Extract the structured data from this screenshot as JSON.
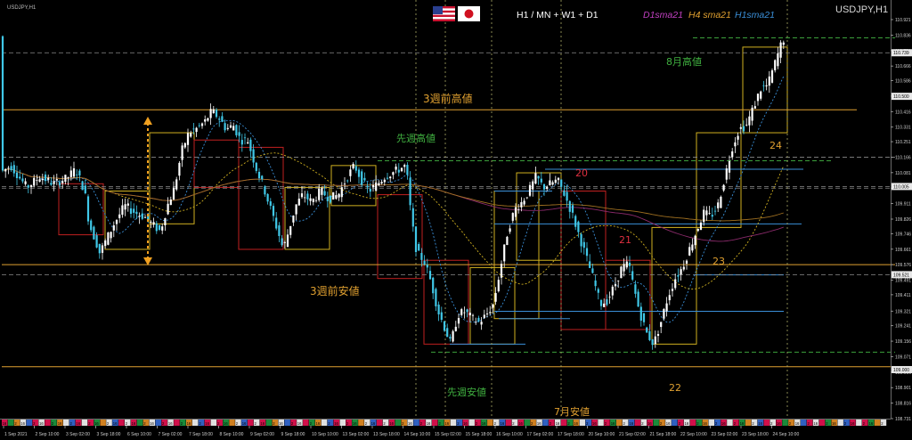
{
  "window": {
    "title": "USDJPY,H1",
    "symbol_label": "USDJPY,H1"
  },
  "header": {
    "timeframes": "H1 / MN + W1 + D1",
    "sma": [
      {
        "label": "D1sma21",
        "color": "#c040c0"
      },
      {
        "label": "H4 sma21",
        "color": "#e0a030"
      },
      {
        "label": "H1sma21",
        "color": "#3a8fd8"
      }
    ],
    "flags": [
      {
        "name": "us-flag-icon"
      },
      {
        "name": "japan-flag-icon"
      }
    ]
  },
  "colors": {
    "background": "#000000",
    "bull_candle": "#ffffff",
    "bear_candle": "#40c8e8",
    "orange_level": "#e0a030",
    "green_level": "#3ca03c",
    "red_box": "#c02020",
    "yellow_box": "#d0b020",
    "blue_box": "#3a8fd8",
    "label_orange": "#e0a030",
    "label_green": "#40b040",
    "label_red": "#e03040"
  },
  "annotations": {
    "three_weeks_high": "3週前高値",
    "three_weeks_low": "3週前安値",
    "last_week_high": "先週高値",
    "last_week_low": "先週安値",
    "august_high": "8月高値",
    "july_low": "7月安値",
    "day_20": "20",
    "day_21": "21",
    "day_22": "22",
    "day_23": "23",
    "day_24": "24"
  },
  "chart_data": {
    "type": "candlestick",
    "symbol": "USDJPY",
    "timeframe": "H1",
    "ylim": [
      108.731,
      110.921
    ],
    "y_ticks": [
      "110.921",
      "110.836",
      "110.751",
      "110.666",
      "110.586",
      "110.501",
      "110.416",
      "110.331",
      "110.251",
      "110.166",
      "110.081",
      "109.996",
      "109.911",
      "109.826",
      "109.746",
      "109.661",
      "109.576",
      "109.491",
      "109.411",
      "109.321",
      "109.241",
      "109.156",
      "109.071",
      "108.986",
      "108.901",
      "108.816",
      "108.731"
    ],
    "price_markers": [
      {
        "value": "110.739",
        "price": 110.739
      },
      {
        "value": "110.500",
        "price": 110.5
      },
      {
        "value": "110.005",
        "price": 110.005
      },
      {
        "value": "109.521",
        "price": 109.521
      },
      {
        "value": "109.000",
        "price": 109.0
      }
    ],
    "x_ticks": [
      "1 Sep 2021",
      "2 Sep 10:00",
      "3 Sep 02:00",
      "3 Sep 18:00",
      "6 Sep 10:00",
      "7 Sep 02:00",
      "7 Sep 18:00",
      "8 Sep 10:00",
      "9 Sep 02:00",
      "9 Sep 18:00",
      "10 Sep 10:00",
      "13 Sep 02:00",
      "13 Sep 18:00",
      "14 Sep 10:00",
      "15 Sep 02:00",
      "15 Sep 18:00",
      "16 Sep 10:00",
      "17 Sep 02:00",
      "17 Sep 18:00",
      "20 Sep 10:00",
      "21 Sep 02:00",
      "21 Sep 18:00",
      "22 Sep 10:00",
      "23 Sep 02:00",
      "23 Sep 18:00",
      "24 Sep 10:00"
    ],
    "path": [
      [
        0,
        110.08
      ],
      [
        12,
        110.12
      ],
      [
        30,
        110.0
      ],
      [
        45,
        110.06
      ],
      [
        60,
        110.02
      ],
      [
        75,
        110.05
      ],
      [
        85,
        110.1
      ],
      [
        95,
        109.98
      ],
      [
        100,
        109.8
      ],
      [
        108,
        109.7
      ],
      [
        112,
        109.64
      ],
      [
        118,
        109.7
      ],
      [
        128,
        109.8
      ],
      [
        140,
        109.9
      ],
      [
        152,
        109.86
      ],
      [
        162,
        109.84
      ],
      [
        170,
        109.8
      ],
      [
        180,
        109.76
      ],
      [
        188,
        109.9
      ],
      [
        196,
        110.0
      ],
      [
        204,
        110.2
      ],
      [
        212,
        110.3
      ],
      [
        220,
        110.32
      ],
      [
        230,
        110.36
      ],
      [
        238,
        110.42
      ],
      [
        246,
        110.38
      ],
      [
        254,
        110.32
      ],
      [
        262,
        110.34
      ],
      [
        270,
        110.26
      ],
      [
        278,
        110.26
      ],
      [
        288,
        110.1
      ],
      [
        296,
        110.0
      ],
      [
        304,
        109.88
      ],
      [
        312,
        109.76
      ],
      [
        318,
        109.66
      ],
      [
        324,
        109.76
      ],
      [
        332,
        109.9
      ],
      [
        340,
        109.96
      ],
      [
        350,
        109.92
      ],
      [
        360,
        109.98
      ],
      [
        370,
        109.94
      ],
      [
        380,
        109.96
      ],
      [
        390,
        110.06
      ],
      [
        398,
        110.12
      ],
      [
        406,
        110.04
      ],
      [
        414,
        109.98
      ],
      [
        424,
        110.02
      ],
      [
        432,
        110.06
      ],
      [
        440,
        110.08
      ],
      [
        448,
        110.1
      ],
      [
        456,
        110.12
      ],
      [
        462,
        109.82
      ],
      [
        468,
        109.64
      ],
      [
        476,
        109.6
      ],
      [
        484,
        109.48
      ],
      [
        492,
        109.32
      ],
      [
        500,
        109.22
      ],
      [
        506,
        109.14
      ],
      [
        514,
        109.3
      ],
      [
        522,
        109.32
      ],
      [
        530,
        109.28
      ],
      [
        538,
        109.26
      ],
      [
        546,
        109.3
      ],
      [
        554,
        109.36
      ],
      [
        562,
        109.56
      ],
      [
        570,
        109.76
      ],
      [
        578,
        109.88
      ],
      [
        586,
        109.92
      ],
      [
        594,
        109.98
      ],
      [
        602,
        110.06
      ],
      [
        610,
        110.0
      ],
      [
        618,
        110.02
      ],
      [
        626,
        110.04
      ],
      [
        634,
        109.96
      ],
      [
        642,
        109.86
      ],
      [
        650,
        109.74
      ],
      [
        658,
        109.62
      ],
      [
        666,
        109.5
      ],
      [
        674,
        109.36
      ],
      [
        682,
        109.38
      ],
      [
        690,
        109.46
      ],
      [
        698,
        109.56
      ],
      [
        706,
        109.58
      ],
      [
        712,
        109.44
      ],
      [
        718,
        109.32
      ],
      [
        726,
        109.2
      ],
      [
        734,
        109.14
      ],
      [
        742,
        109.26
      ],
      [
        750,
        109.4
      ],
      [
        758,
        109.5
      ],
      [
        766,
        109.56
      ],
      [
        774,
        109.66
      ],
      [
        782,
        109.76
      ],
      [
        790,
        109.86
      ],
      [
        798,
        109.84
      ],
      [
        806,
        109.9
      ],
      [
        814,
        110.06
      ],
      [
        822,
        110.22
      ],
      [
        830,
        110.32
      ],
      [
        838,
        110.34
      ],
      [
        846,
        110.44
      ],
      [
        854,
        110.54
      ],
      [
        862,
        110.56
      ],
      [
        870,
        110.68
      ],
      [
        878,
        110.8
      ],
      [
        882,
        110.83
      ]
    ],
    "levels": [
      {
        "label": "3週前高値",
        "price": 110.426,
        "color": "orange"
      },
      {
        "label": "3週前安値",
        "price": 109.576,
        "color": "orange"
      },
      {
        "label": "先週高値",
        "price": 110.146,
        "color": "green"
      },
      {
        "label": "先週安値",
        "price": 109.096,
        "color": "green"
      },
      {
        "label": "8月高値",
        "price": 110.821,
        "color": "green"
      },
      {
        "label": "7月安値",
        "price": 109.016,
        "color": "orange"
      }
    ]
  }
}
